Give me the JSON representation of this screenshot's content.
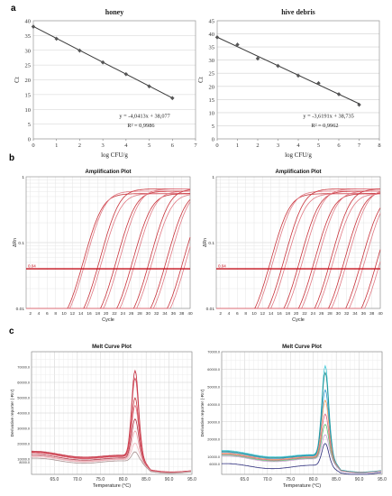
{
  "panel_labels": [
    "a",
    "b",
    "c"
  ],
  "chart_data": [
    {
      "type": "scatter",
      "title": "honey",
      "xlabel": "log CFU/g",
      "ylabel": "Ct",
      "xlim": [
        0,
        7
      ],
      "ylim": [
        0,
        40
      ],
      "xticks": [
        "0",
        "1",
        "2",
        "3",
        "4",
        "5",
        "6",
        "7"
      ],
      "yticks": [
        "0",
        "5",
        "10",
        "15",
        "20",
        "25",
        "30",
        "35",
        "40"
      ],
      "grid": true,
      "series": [
        {
          "x": [
            0,
            1,
            2,
            3,
            4,
            5,
            6
          ],
          "y": [
            38.0,
            33.9,
            29.9,
            25.9,
            21.9,
            17.8,
            13.8
          ]
        }
      ],
      "trendline": {
        "slope": -4.0413,
        "intercept": 38.077
      },
      "equation": "y = -4,0413x + 38,077",
      "r2": "R² = 0,9986",
      "color": "#3a3a3a"
    },
    {
      "type": "scatter",
      "title": "hive debris",
      "xlabel": "log CFU/g",
      "ylabel": "Ct",
      "xlim": [
        0,
        8
      ],
      "ylim": [
        0,
        45
      ],
      "xticks": [
        "0",
        "1",
        "2",
        "3",
        "4",
        "5",
        "6",
        "7",
        "8"
      ],
      "yticks": [
        "0",
        "5",
        "10",
        "15",
        "20",
        "25",
        "30",
        "35",
        "40",
        "45"
      ],
      "grid": true,
      "series": [
        {
          "x": [
            0,
            1,
            2,
            3,
            4,
            5,
            6,
            7
          ],
          "y": [
            38.7,
            35.9,
            30.6,
            27.8,
            24.1,
            21.2,
            17.0,
            13.0
          ]
        }
      ],
      "trendline": {
        "slope": -3.6191,
        "intercept": 38.735
      },
      "equation": "y = -3,6191x + 38,735",
      "r2": "R² = 0,9962",
      "color": "#3a3a3a"
    },
    {
      "type": "line",
      "title": "Amplification Plot",
      "xlabel": "Cycle",
      "ylabel": "ΔRn",
      "log_y": true,
      "xlim": [
        1,
        40
      ],
      "ylim": [
        0.01,
        1
      ],
      "xticks": [
        "2",
        "4",
        "6",
        "8",
        "10",
        "12",
        "14",
        "16",
        "18",
        "20",
        "22",
        "24",
        "26",
        "28",
        "30",
        "32",
        "34",
        "36",
        "38",
        "40"
      ],
      "yticks": [
        "0.01",
        "0.1",
        "1"
      ],
      "threshold": 0.04,
      "threshold_label": "0.04",
      "grid": true,
      "color": "#c8333b",
      "curves_ct": [
        14.1,
        14.6,
        17.9,
        18.5,
        21.9,
        22.6,
        25.8,
        26.5,
        29.8,
        30.5,
        33.8,
        34.5,
        37.8,
        38.5
      ]
    },
    {
      "type": "line",
      "title": "Amplification Plot",
      "xlabel": "Cycle",
      "ylabel": "ΔRn",
      "log_y": true,
      "xlim": [
        1,
        40
      ],
      "ylim": [
        0.01,
        1
      ],
      "xticks": [
        "2",
        "4",
        "6",
        "8",
        "10",
        "12",
        "14",
        "16",
        "18",
        "20",
        "22",
        "24",
        "26",
        "28",
        "30",
        "32",
        "34",
        "36",
        "38",
        "40"
      ],
      "yticks": [
        "0.01",
        "0.1",
        "1"
      ],
      "threshold": 0.04,
      "threshold_label": "0.04",
      "grid": true,
      "color": "#c8333b",
      "curves_ct": [
        13.4,
        14.0,
        16.5,
        17.2,
        20.3,
        21.0,
        23.8,
        24.5,
        27.6,
        28.3,
        30.9,
        31.6,
        35.0,
        35.8,
        38.7,
        39.5
      ]
    },
    {
      "type": "line",
      "title": "Melt Curve Plot",
      "xlabel": "Temperature (°C)",
      "ylabel": "Derivative reporter (-Rn')",
      "xlim": [
        60,
        95
      ],
      "ylim": [
        0,
        80000
      ],
      "xticks": [
        "65.0",
        "70.0",
        "75.0",
        "80.0",
        "85.0",
        "90.0",
        "95.0"
      ],
      "yticks": [
        "8000.0",
        "10000.0",
        "20000.0",
        "30000.0",
        "40000.0",
        "50000.0",
        "60000.0",
        "70000.0"
      ],
      "grid": true,
      "series": [
        {
          "peak": 70000,
          "base": 14000,
          "color": "#c0283a"
        },
        {
          "peak": 65000,
          "base": 13500,
          "color": "#d04858"
        },
        {
          "peak": 52000,
          "base": 13000,
          "color": "#c8333b"
        },
        {
          "peak": 47000,
          "base": 12800,
          "color": "#e07080"
        },
        {
          "peak": 38000,
          "base": 11800,
          "color": "#b03040"
        },
        {
          "peak": 30000,
          "base": 11000,
          "color": "#e8a0a8"
        },
        {
          "peak": 22000,
          "base": 10500,
          "color": "#f0b8c0"
        },
        {
          "peak": 16000,
          "base": 9500,
          "color": "#a89090"
        }
      ]
    },
    {
      "type": "line",
      "title": "Melt Curve Plot",
      "xlabel": "Temperature (°C)",
      "ylabel": "Derivative reporter (-Rn')",
      "xlim": [
        60,
        95
      ],
      "ylim": [
        0,
        70000
      ],
      "xticks": [
        "65.0",
        "70.0",
        "75.0",
        "80.0",
        "85.0",
        "90.0",
        "95.0"
      ],
      "yticks": [
        "6000.0",
        "10000.0",
        "20000.0",
        "30000.0",
        "40000.0",
        "50000.0",
        "60000.0",
        "70000.0"
      ],
      "grid": true,
      "series": [
        {
          "peak": 64000,
          "base": 12500,
          "color": "#3fc8d8"
        },
        {
          "peak": 60000,
          "base": 12000,
          "color": "#1a8a8a"
        },
        {
          "peak": 50000,
          "base": 11500,
          "color": "#2a9ad0"
        },
        {
          "peak": 44000,
          "base": 11000,
          "color": "#f0a060"
        },
        {
          "peak": 36000,
          "base": 10500,
          "color": "#e06080"
        },
        {
          "peak": 30000,
          "base": 10000,
          "color": "#60c070"
        },
        {
          "peak": 24000,
          "base": 9500,
          "color": "#c8a0d0"
        },
        {
          "peak": 18000,
          "base": 5000,
          "color": "#2a2a7a"
        }
      ]
    }
  ]
}
